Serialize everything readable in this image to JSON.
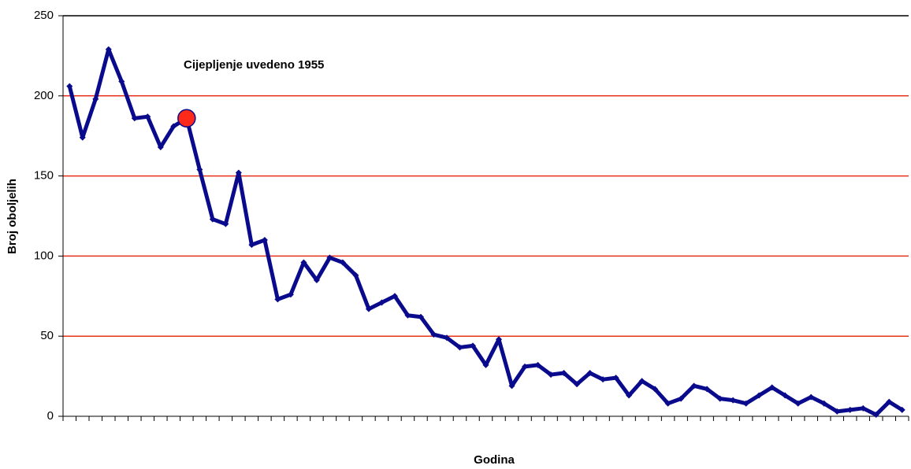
{
  "chart_data": {
    "type": "line",
    "annotation": "Cijepljenje uvedeno 1955",
    "xlabel": "Godina",
    "ylabel": "Broj oboljelih",
    "categories": [
      null,
      null,
      null,
      null,
      null,
      null,
      null,
      null,
      null,
      null,
      null,
      null,
      null,
      null,
      null,
      null,
      null,
      null,
      null,
      null,
      null,
      null,
      null,
      null,
      null,
      null,
      null,
      null,
      null,
      null,
      null,
      null,
      null,
      null,
      null,
      null,
      null,
      null,
      null,
      null,
      null,
      null,
      null,
      null,
      null,
      null,
      null,
      null,
      null,
      null,
      null,
      null,
      null,
      null,
      null,
      null,
      null,
      null,
      null,
      null,
      null,
      null,
      null,
      null,
      null
    ],
    "series": [
      {
        "name": null,
        "color": "#0a0a8c",
        "values": [
          206,
          174,
          198,
          229,
          209,
          186,
          187,
          168,
          181,
          186,
          154,
          123,
          120,
          152,
          107,
          110,
          73,
          76,
          96,
          85,
          99,
          96,
          88,
          67,
          71,
          75,
          63,
          62,
          51,
          49,
          43,
          44,
          32,
          48,
          19,
          31,
          32,
          26,
          27,
          20,
          27,
          23,
          24,
          13,
          22,
          17,
          8,
          11,
          19,
          17,
          11,
          10,
          8,
          13,
          18,
          13,
          8,
          12,
          8,
          3,
          4,
          5,
          1,
          9,
          4
        ]
      }
    ],
    "highlight": {
      "index": 9,
      "color": "#ff2a1a"
    },
    "ylim": [
      0,
      250
    ],
    "yticks": [
      0,
      50,
      100,
      150,
      200,
      250
    ],
    "grid": true,
    "grid_color": "#e8321a"
  }
}
